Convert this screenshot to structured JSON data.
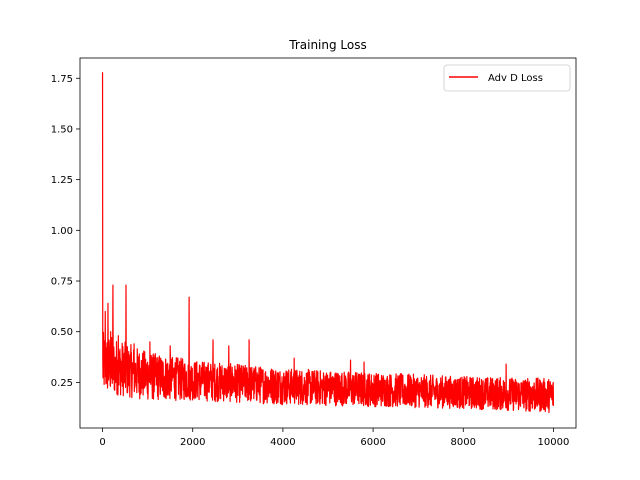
{
  "chart_data": {
    "type": "line",
    "title": "Training Loss",
    "xlabel": "",
    "ylabel": "",
    "xlim": [
      -500,
      10500
    ],
    "ylim": [
      0.025,
      1.85
    ],
    "x_ticks": [
      0,
      2000,
      4000,
      6000,
      8000,
      10000
    ],
    "x_tick_labels": [
      "0",
      "2000",
      "4000",
      "6000",
      "8000",
      "10000"
    ],
    "y_ticks": [
      0.25,
      0.5,
      0.75,
      1.0,
      1.25,
      1.5,
      1.75
    ],
    "y_tick_labels": [
      "0.25",
      "0.50",
      "0.75",
      "1.00",
      "1.25",
      "1.50",
      "1.75"
    ],
    "grid": false,
    "legend_position": "top-right",
    "series": [
      {
        "name": "Adv D Loss",
        "color": "#ff0000",
        "x_range": [
          0,
          10000
        ],
        "trend": [
          [
            0,
            0.32
          ],
          [
            250,
            0.31
          ],
          [
            500,
            0.3
          ],
          [
            1000,
            0.29
          ],
          [
            2000,
            0.27
          ],
          [
            3000,
            0.255
          ],
          [
            4000,
            0.24
          ],
          [
            5000,
            0.225
          ],
          [
            6000,
            0.215
          ],
          [
            7000,
            0.205
          ],
          [
            8000,
            0.2
          ],
          [
            9000,
            0.195
          ],
          [
            10000,
            0.19
          ]
        ],
        "noise_upper": [
          [
            0,
            0.5
          ],
          [
            1000,
            0.4
          ],
          [
            2000,
            0.36
          ],
          [
            4000,
            0.32
          ],
          [
            6000,
            0.3
          ],
          [
            8000,
            0.28
          ],
          [
            10000,
            0.27
          ]
        ],
        "noise_lower": [
          [
            0,
            0.2
          ],
          [
            1000,
            0.16
          ],
          [
            2000,
            0.16
          ],
          [
            4000,
            0.14
          ],
          [
            6000,
            0.13
          ],
          [
            8000,
            0.12
          ],
          [
            10000,
            0.1
          ]
        ],
        "spikes": [
          [
            0,
            1.78
          ],
          [
            60,
            0.6
          ],
          [
            120,
            0.64
          ],
          [
            180,
            0.5
          ],
          [
            230,
            0.73
          ],
          [
            350,
            0.48
          ],
          [
            520,
            0.73
          ],
          [
            700,
            0.44
          ],
          [
            1050,
            0.45
          ],
          [
            1500,
            0.43
          ],
          [
            1920,
            0.67
          ],
          [
            2450,
            0.46
          ],
          [
            2800,
            0.43
          ],
          [
            3250,
            0.46
          ],
          [
            4250,
            0.37
          ],
          [
            5500,
            0.36
          ],
          [
            5800,
            0.35
          ],
          [
            8950,
            0.34
          ]
        ]
      }
    ]
  }
}
